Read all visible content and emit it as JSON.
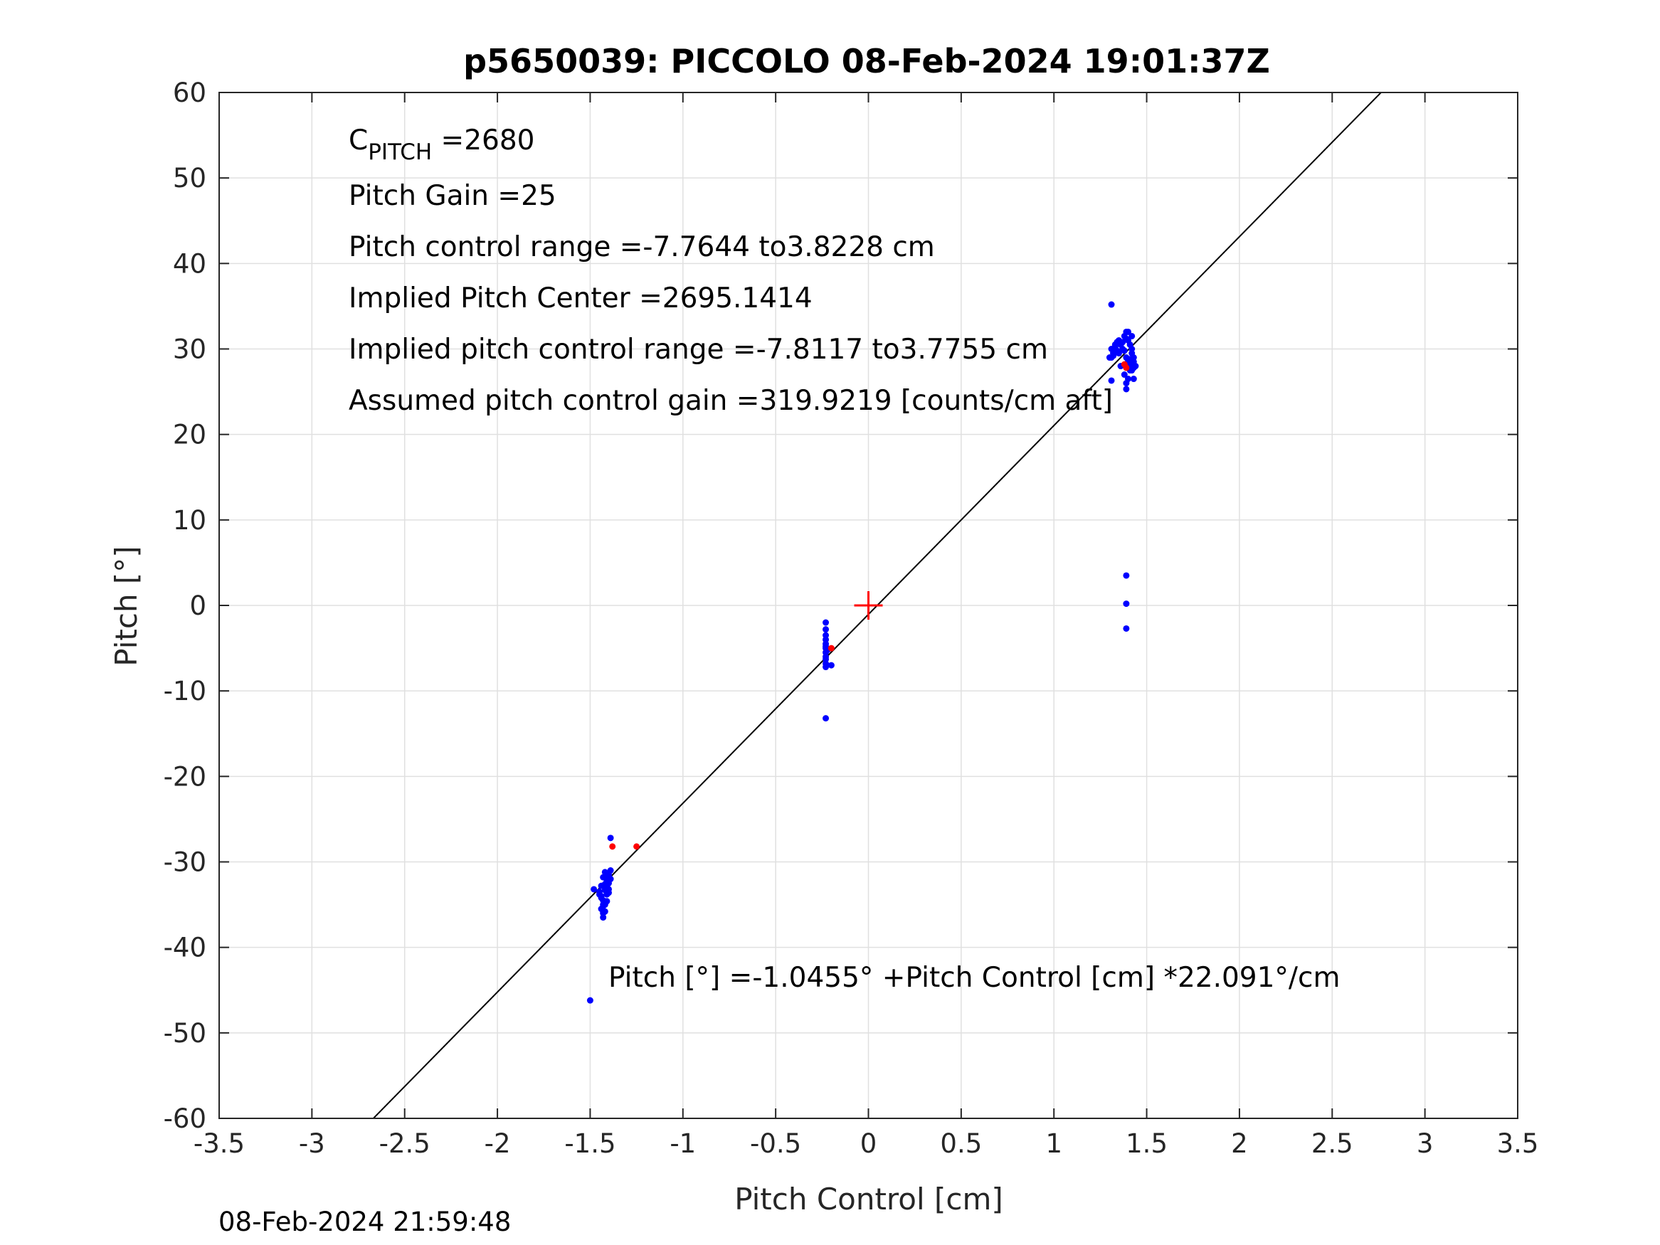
{
  "chart_data": {
    "type": "scatter",
    "title": "p5650039: PICCOLO 08-Feb-2024 19:01:37Z",
    "xlabel": "Pitch Control [cm]",
    "ylabel": "Pitch [°]",
    "xlim": [
      -3.5,
      3.5
    ],
    "ylim": [
      -60,
      60
    ],
    "xticks": [
      -3.5,
      -3,
      -2.5,
      -2,
      -1.5,
      -1,
      -0.5,
      0,
      0.5,
      1,
      1.5,
      2,
      2.5,
      3,
      3.5
    ],
    "xtick_labels": [
      "-3.5",
      "-3",
      "-2.5",
      "-2",
      "-1.5",
      "-1",
      "-0.5",
      "0",
      "0.5",
      "1",
      "1.5",
      "2",
      "2.5",
      "3",
      "3.5"
    ],
    "yticks": [
      -60,
      -50,
      -40,
      -30,
      -20,
      -10,
      0,
      10,
      20,
      30,
      40,
      50,
      60
    ],
    "ytick_labels": [
      "-60",
      "-50",
      "-40",
      "-30",
      "-20",
      "-10",
      "0",
      "10",
      "20",
      "30",
      "40",
      "50",
      "60"
    ],
    "grid": true,
    "colors": {
      "blue": "#0000ff",
      "red": "#ff0000",
      "fit_line": "#000000",
      "grid": "#e0e0e0",
      "axis": "#262626"
    },
    "fit_line": {
      "intercept": -1.0455,
      "slope": 22.091
    },
    "center_marker": {
      "x": 0,
      "y": 0,
      "color": "#ff0000"
    },
    "series": [
      {
        "color": "#0000ff",
        "x": [
          -1.48,
          -1.45,
          -1.44,
          -1.43,
          -1.42,
          -1.41,
          -1.4,
          -1.39,
          -1.44,
          -1.43,
          -1.42,
          -1.41,
          -1.4,
          -1.39,
          -1.45,
          -1.44,
          -1.43,
          -1.42,
          -1.41,
          -1.4,
          -1.44,
          -1.43,
          -1.42,
          -1.41,
          -1.4,
          -1.43,
          -1.42,
          -1.41,
          -1.43,
          -1.42,
          -1.39,
          -1.5,
          -0.23,
          -0.23,
          -0.23,
          -0.23,
          -0.23,
          -0.23,
          -0.23,
          -0.23,
          -0.23,
          -0.23,
          -0.23,
          -0.23,
          -0.22,
          -0.2,
          -0.23,
          1.31,
          1.31,
          1.32,
          1.33,
          1.34,
          1.35,
          1.36,
          1.37,
          1.38,
          1.39,
          1.4,
          1.41,
          1.42,
          1.43,
          1.32,
          1.34,
          1.36,
          1.38,
          1.4,
          1.42,
          1.33,
          1.35,
          1.37,
          1.39,
          1.41,
          1.43,
          1.38,
          1.4,
          1.42,
          1.39,
          1.41,
          1.43,
          1.4,
          1.42,
          1.44,
          1.39,
          1.41,
          1.43,
          1.39,
          1.31,
          1.39,
          1.39,
          1.39,
          1.3,
          1.31,
          1.32
        ],
        "y": [
          -33.2,
          -33.5,
          -34.0,
          -34.5,
          -35.0,
          -33.0,
          -32.5,
          -32.0,
          -35.5,
          -36.0,
          -34.8,
          -33.8,
          -31.5,
          -31.0,
          -33.8,
          -32.8,
          -31.8,
          -31.2,
          -32.2,
          -33.2,
          -34.2,
          -35.2,
          -35.8,
          -34.6,
          -33.6,
          -36.5,
          -32.6,
          -31.6,
          -35.0,
          -33.3,
          -27.2,
          -46.2,
          -2.0,
          -2.8,
          -3.5,
          -4.0,
          -4.5,
          -5.0,
          -5.5,
          -6.0,
          -6.3,
          -6.8,
          -7.2,
          -4.8,
          -5.2,
          -7.0,
          -13.2,
          29.0,
          30.0,
          29.5,
          30.2,
          29.8,
          31.0,
          30.5,
          30.0,
          31.5,
          32.0,
          31.0,
          30.5,
          29.5,
          28.5,
          29.2,
          30.8,
          28.0,
          29.8,
          28.5,
          27.5,
          30.5,
          29.5,
          30.8,
          31.2,
          28.8,
          27.8,
          27.0,
          26.5,
          30.0,
          29.0,
          28.0,
          29.0,
          32.0,
          31.5,
          28.0,
          26.0,
          27.5,
          26.5,
          25.3,
          35.2,
          3.5,
          0.2,
          -2.7,
          29.0,
          26.3,
          29.5
        ]
      },
      {
        "color": "#ff0000",
        "x": [
          -1.38,
          -1.25,
          -0.2,
          1.38,
          1.39
        ],
        "y": [
          -28.2,
          -28.2,
          -5.0,
          28.2,
          27.8
        ]
      }
    ],
    "annotations": {
      "cpitch_main": "C",
      "cpitch_sub": "PITCH",
      "cpitch_value": " =2680",
      "pitch_gain": "Pitch Gain =25",
      "control_range": "Pitch control range =-7.7644 to3.8228 cm",
      "implied_center": "Implied Pitch Center =2695.1414",
      "implied_range": "Implied pitch control range =-7.8117 to3.7755 cm",
      "assumed_gain": "Assumed pitch control gain =319.9219 [counts/cm aft]",
      "fit_equation": "Pitch [°] =-1.0455° +Pitch Control [cm] *22.091°/cm"
    },
    "footer_timestamp": "08-Feb-2024 21:59:48"
  }
}
